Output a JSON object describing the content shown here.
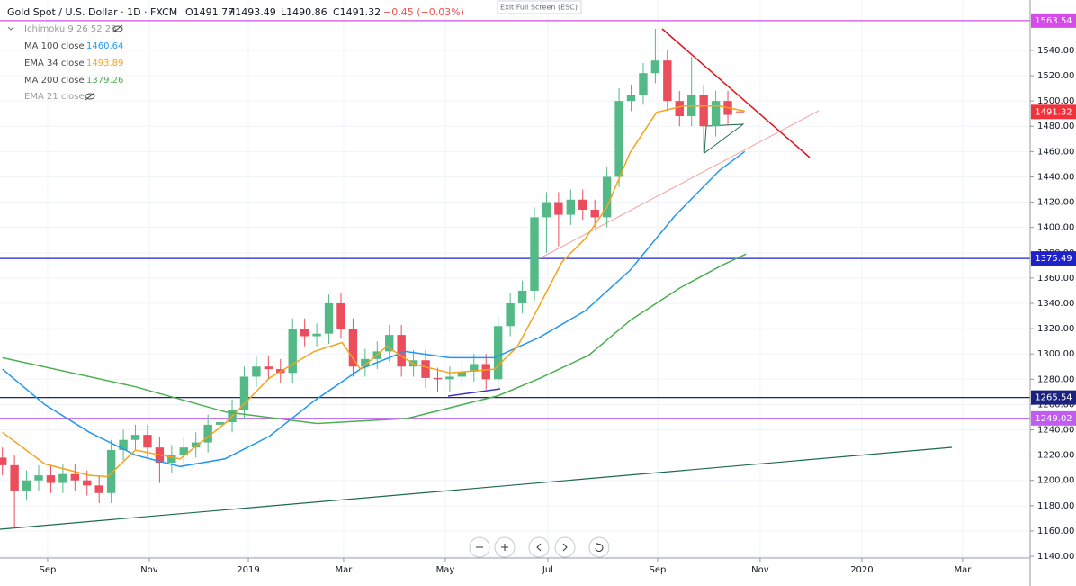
{
  "header": {
    "title": "Gold Spot / U.S. Dollar · 1D · FXCM",
    "open": "O1491.77",
    "high": "H1493.49",
    "low": "L1490.86",
    "close": "C1491.32",
    "change": "−0.45 (−0.03%)",
    "exit_button": "Exit Full Screen (ESC)"
  },
  "indicators_hidden": [
    "Ichimoku 9 26 52 26",
    "EMA 21 close"
  ],
  "chart_data": {
    "type": "candlestick",
    "up_color": "#53b987",
    "down_color": "#eb4d5c",
    "open": [
      1218,
      1212,
      1192,
      1200,
      1204,
      1198,
      1205,
      1200,
      1196,
      1190,
      1224,
      1232,
      1236,
      1226,
      1214,
      1220,
      1226,
      1230,
      1244,
      1246,
      1256,
      1282,
      1290,
      1288,
      1285,
      1320,
      1314,
      1316,
      1340,
      1320,
      1290,
      1296,
      1302,
      1315,
      1290,
      1295,
      1281,
      1280,
      1282,
      1286,
      1292,
      1280,
      1322,
      1340,
      1350,
      1408,
      1420,
      1410,
      1422,
      1414,
      1408,
      1440,
      1500,
      1505,
      1522,
      1532,
      1500,
      1488,
      1505,
      1480,
      1500,
      1491.77
    ],
    "high": [
      1226,
      1220,
      1208,
      1212,
      1212,
      1213,
      1213,
      1208,
      1204,
      1232,
      1240,
      1244,
      1244,
      1234,
      1228,
      1234,
      1238,
      1252,
      1254,
      1264,
      1290,
      1298,
      1298,
      1296,
      1328,
      1328,
      1324,
      1347,
      1348,
      1328,
      1304,
      1310,
      1323,
      1323,
      1303,
      1303,
      1289,
      1290,
      1294,
      1300,
      1300,
      1330,
      1348,
      1358,
      1416,
      1428,
      1428,
      1430,
      1430,
      1422,
      1448,
      1510,
      1513,
      1530,
      1557,
      1540,
      1508,
      1535,
      1513,
      1508,
      1508,
      1493.49
    ],
    "low": [
      1204,
      1162,
      1184,
      1192,
      1190,
      1190,
      1192,
      1188,
      1182,
      1182,
      1216,
      1224,
      1218,
      1198,
      1206,
      1212,
      1218,
      1222,
      1236,
      1238,
      1248,
      1274,
      1280,
      1277,
      1277,
      1306,
      1306,
      1308,
      1312,
      1282,
      1282,
      1288,
      1294,
      1282,
      1282,
      1273,
      1270,
      1270,
      1274,
      1278,
      1272,
      1272,
      1314,
      1332,
      1342,
      1380,
      1385,
      1402,
      1406,
      1400,
      1400,
      1432,
      1492,
      1497,
      1514,
      1492,
      1480,
      1480,
      1459,
      1472,
      1481,
      1490.86
    ],
    "close": [
      1212,
      1192,
      1200,
      1204,
      1198,
      1205,
      1200,
      1196,
      1190,
      1224,
      1232,
      1236,
      1226,
      1214,
      1220,
      1226,
      1230,
      1244,
      1246,
      1256,
      1282,
      1290,
      1288,
      1285,
      1320,
      1314,
      1316,
      1340,
      1320,
      1290,
      1296,
      1302,
      1315,
      1290,
      1295,
      1281,
      1280,
      1282,
      1286,
      1292,
      1280,
      1322,
      1340,
      1350,
      1408,
      1420,
      1410,
      1422,
      1414,
      1408,
      1440,
      1500,
      1505,
      1522,
      1532,
      1500,
      1488,
      1505,
      1480,
      1500,
      1489,
      1491.32
    ],
    "lines": [
      {
        "name": "MA 100 close",
        "color": "#2196f3",
        "last": 1460.64,
        "x": [
          0,
          3.5,
          7.2,
          11,
          14.7,
          18.4,
          22.1,
          25.8,
          29.6,
          33.3,
          37,
          40.7,
          44.4,
          48.2,
          51.9,
          55.6,
          59.3,
          61.4
        ],
        "values": [
          1288,
          1260,
          1238,
          1220,
          1211,
          1217,
          1235,
          1263,
          1288,
          1302,
          1297,
          1297,
          1313,
          1334,
          1366,
          1409,
          1445,
          1460
        ]
      },
      {
        "name": "EMA 34 close",
        "color": "#f7a21b",
        "last": 1493.89,
        "x": [
          0,
          3.5,
          7.2,
          8.7,
          11,
          14.7,
          18.4,
          22.1,
          25.8,
          28.1,
          29.6,
          31.8,
          34,
          37,
          40.7,
          42.6,
          44.4,
          46.3,
          48.2,
          50,
          51.9,
          54.1,
          56.3,
          59.3,
          61.4
        ],
        "values": [
          1238,
          1213,
          1204,
          1203,
          1224,
          1217,
          1245,
          1281,
          1302,
          1309,
          1288,
          1306,
          1292,
          1285,
          1288,
          1306,
          1338,
          1373,
          1391,
          1416,
          1459,
          1491,
          1496,
          1496,
          1492
        ]
      },
      {
        "name": "MA 200 close",
        "color": "#4caf50",
        "last": 1379.26,
        "x": [
          0,
          11,
          18.5,
          26,
          33.5,
          41,
          44.5,
          48.5,
          52,
          56,
          59.5,
          61.5
        ],
        "values": [
          1297,
          1274,
          1254,
          1245,
          1249,
          1267,
          1281,
          1299,
          1327,
          1352,
          1370,
          1379
        ]
      }
    ],
    "levels": [
      {
        "value": 1563.54,
        "color": "#d54be8"
      },
      {
        "value": 1375.49,
        "color": "#1e22c8"
      },
      {
        "value": 1265.54,
        "color": "#1a237e"
      },
      {
        "value": 1249.02,
        "color": "#c05cf0"
      }
    ],
    "last_price": 1491.32,
    "last_price_color": "#f0323c",
    "xlim": [
      -0.2,
      85
    ],
    "xticks": [
      {
        "value": 3.74,
        "label": "Sep"
      },
      {
        "value": 12.15,
        "label": "Nov"
      },
      {
        "value": 20.34,
        "label": "2019"
      },
      {
        "value": 28.22,
        "label": "Mar"
      },
      {
        "value": 36.63,
        "label": "May"
      },
      {
        "value": 45.11,
        "label": "Jul"
      },
      {
        "value": 54.19,
        "label": "Sep"
      },
      {
        "value": 62.67,
        "label": "Nov"
      },
      {
        "value": 71.08,
        "label": "2020"
      },
      {
        "value": 79.41,
        "label": "Mar"
      }
    ],
    "ylim": [
      1138.6,
      1579.8
    ],
    "yticks": [
      {
        "value": 1140,
        "label": "1140.00"
      },
      {
        "value": 1160,
        "label": "1160.00"
      },
      {
        "value": 1180,
        "label": "1180.00"
      },
      {
        "value": 1200,
        "label": "1200.00"
      },
      {
        "value": 1220,
        "label": "1220.00"
      },
      {
        "value": 1240,
        "label": "1240.00"
      },
      {
        "value": 1260,
        "label": "1260.00"
      },
      {
        "value": 1280,
        "label": "1280.00"
      },
      {
        "value": 1300,
        "label": "1300.00"
      },
      {
        "value": 1320,
        "label": "1320.00"
      },
      {
        "value": 1340,
        "label": "1340.00"
      },
      {
        "value": 1360,
        "label": "1360.00"
      },
      {
        "value": 1380,
        "label": "1380.00"
      },
      {
        "value": 1400,
        "label": "1400.00"
      },
      {
        "value": 1420,
        "label": "1420.00"
      },
      {
        "value": 1440,
        "label": "1440.00"
      },
      {
        "value": 1460,
        "label": "1460.00"
      },
      {
        "value": 1480,
        "label": "1480.00"
      },
      {
        "value": 1500,
        "label": "1500.00"
      },
      {
        "value": 1520,
        "label": "1520.00"
      },
      {
        "value": 1540,
        "label": "1540.00"
      }
    ],
    "grid": true
  }
}
